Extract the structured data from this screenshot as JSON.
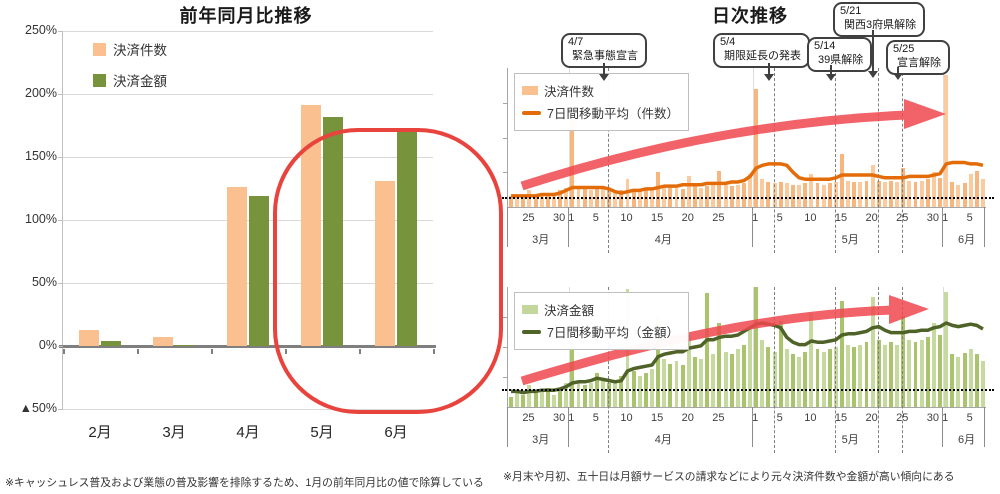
{
  "right_panel": {
    "title": "日次推移",
    "footnote": "※月末や月初、五十日は月額サービスの請求などにより元々決済件数や金額が高い傾向にある",
    "events": [
      {
        "date": "4/7",
        "label": "緊急事態宣言",
        "day": 16
      },
      {
        "date": "5/4",
        "label": "期限延長の発表",
        "day": 43
      },
      {
        "date": "5/14",
        "label": "39県解除",
        "day": 53
      },
      {
        "date": "5/21",
        "label": "関西3府県解除",
        "day": 60
      },
      {
        "date": "5/25",
        "label": "宣言解除",
        "day": 64
      }
    ]
  },
  "chart_data": [
    {
      "id": "yoy",
      "type": "bar",
      "title": "前年同月比推移",
      "categories": [
        "2月",
        "3月",
        "4月",
        "5月",
        "6月"
      ],
      "series": [
        {
          "name": "決済件数",
          "color": "#FAC090",
          "values": [
            13,
            7,
            126,
            191,
            131
          ]
        },
        {
          "name": "決済金額",
          "color": "#77933C",
          "values": [
            4,
            1,
            119,
            182,
            172
          ]
        }
      ],
      "y_ticks": [
        "250%",
        "200%",
        "150%",
        "100%",
        "50%",
        "0%",
        "▲50%"
      ],
      "ylim": [
        -50,
        250
      ],
      "grid": true,
      "highlight": {
        "months": [
          "4月",
          "5月",
          "6月"
        ],
        "color": "#E8433C"
      },
      "footnote": "※キャッシュレス普及および業態の普及影響を排除するため、1月の前年同月比の値で除算している"
    },
    {
      "id": "daily-count",
      "type": "bar+line",
      "legend": [
        {
          "label": "決済件数",
          "color": "#FAC090",
          "kind": "bar"
        },
        {
          "label": "7日間移動平均（件数）",
          "color": "#E36C09",
          "kind": "line"
        }
      ],
      "date_range": "3/22 - 6/7",
      "baseline_pct": 7,
      "month_start_days": [
        10,
        40,
        71
      ],
      "x_ticks": [
        {
          "label": "25",
          "day": 3
        },
        {
          "label": "30",
          "day": 8
        },
        {
          "label": "1",
          "day": 10
        },
        {
          "label": "5",
          "day": 14
        },
        {
          "label": "10",
          "day": 19
        },
        {
          "label": "15",
          "day": 24
        },
        {
          "label": "20",
          "day": 29
        },
        {
          "label": "25",
          "day": 34
        },
        {
          "label": "1",
          "day": 40
        },
        {
          "label": "5",
          "day": 44
        },
        {
          "label": "10",
          "day": 49
        },
        {
          "label": "15",
          "day": 54
        },
        {
          "label": "20",
          "day": 59
        },
        {
          "label": "25",
          "day": 64
        },
        {
          "label": "30",
          "day": 69
        },
        {
          "label": "1",
          "day": 71
        },
        {
          "label": "5",
          "day": 75
        }
      ],
      "months": [
        {
          "label": "3月",
          "center_day": 5
        },
        {
          "label": "4月",
          "center_day": 25
        },
        {
          "label": "5月",
          "center_day": 55.5
        },
        {
          "label": "6月",
          "center_day": 74.5
        }
      ],
      "bars": [
        8,
        9,
        8,
        12,
        9,
        9,
        10,
        8,
        12,
        14,
        67,
        15,
        13,
        12,
        14,
        13,
        12,
        11,
        12,
        20,
        13,
        12,
        13,
        14,
        25,
        15,
        14,
        14,
        13,
        22,
        15,
        14,
        15,
        16,
        26,
        16,
        15,
        16,
        17,
        24,
        85,
        20,
        18,
        17,
        18,
        17,
        16,
        16,
        17,
        24,
        17,
        16,
        17,
        18,
        38,
        19,
        18,
        18,
        19,
        30,
        19,
        18,
        19,
        18,
        28,
        19,
        18,
        19,
        20,
        25,
        21,
        95,
        18,
        16,
        17,
        24,
        26,
        20
      ],
      "ma": [
        8,
        8,
        8,
        8,
        8,
        9,
        9,
        9,
        10,
        12,
        14,
        14,
        14,
        14,
        14,
        14,
        13,
        11,
        10,
        11,
        12,
        12,
        13,
        13,
        14,
        15,
        15,
        15,
        16,
        16,
        16,
        16,
        17,
        17,
        17,
        17,
        18,
        18,
        19,
        22,
        28,
        30,
        31,
        31,
        31,
        30,
        25,
        21,
        20,
        20,
        20,
        20,
        20,
        21,
        23,
        23,
        23,
        23,
        23,
        23,
        22,
        21,
        21,
        21,
        21,
        22,
        22,
        22,
        22,
        23,
        24,
        31,
        32,
        32,
        32,
        31,
        31,
        30
      ]
    },
    {
      "id": "daily-amount",
      "type": "bar+line",
      "legend": [
        {
          "label": "決済金額",
          "color": "#C3D69B",
          "kind": "bar"
        },
        {
          "label": "7日間移動平均（金額）",
          "color": "#4F6228",
          "kind": "line"
        }
      ],
      "date_range": "3/22 - 6/7",
      "baseline_pct": 15,
      "month_start_days": [
        10,
        40,
        71
      ],
      "x_ticks": [
        {
          "label": "25",
          "day": 3
        },
        {
          "label": "30",
          "day": 8
        },
        {
          "label": "1",
          "day": 10
        },
        {
          "label": "5",
          "day": 14
        },
        {
          "label": "10",
          "day": 19
        },
        {
          "label": "15",
          "day": 24
        },
        {
          "label": "20",
          "day": 29
        },
        {
          "label": "25",
          "day": 34
        },
        {
          "label": "1",
          "day": 40
        },
        {
          "label": "5",
          "day": 44
        },
        {
          "label": "10",
          "day": 49
        },
        {
          "label": "15",
          "day": 54
        },
        {
          "label": "20",
          "day": 59
        },
        {
          "label": "25",
          "day": 64
        },
        {
          "label": "30",
          "day": 69
        },
        {
          "label": "1",
          "day": 71
        },
        {
          "label": "5",
          "day": 75
        }
      ],
      "months": [
        {
          "label": "3月",
          "center_day": 5
        },
        {
          "label": "4月",
          "center_day": 25
        },
        {
          "label": "5月",
          "center_day": 55.5
        },
        {
          "label": "6月",
          "center_day": 74.5
        }
      ],
      "bars": [
        8,
        12,
        10,
        18,
        12,
        14,
        16,
        10,
        16,
        20,
        55,
        22,
        18,
        20,
        28,
        22,
        20,
        22,
        26,
        98,
        30,
        26,
        28,
        32,
        75,
        40,
        36,
        38,
        35,
        60,
        42,
        40,
        95,
        44,
        70,
        46,
        44,
        48,
        52,
        65,
        100,
        56,
        50,
        46,
        72,
        48,
        44,
        42,
        46,
        78,
        48,
        46,
        48,
        50,
        88,
        52,
        50,
        52,
        54,
        92,
        56,
        52,
        54,
        52,
        76,
        56,
        54,
        56,
        58,
        70,
        60,
        96,
        44,
        42,
        45,
        48,
        44,
        38
      ],
      "ma": [
        13,
        13,
        12,
        13,
        13,
        14,
        14,
        14,
        15,
        17,
        20,
        21,
        21,
        22,
        24,
        23,
        22,
        21,
        22,
        30,
        32,
        33,
        34,
        35,
        42,
        44,
        45,
        46,
        46,
        49,
        50,
        51,
        56,
        56,
        58,
        59,
        59,
        60,
        63,
        66,
        69,
        70,
        69,
        68,
        66,
        58,
        54,
        52,
        52,
        55,
        54,
        54,
        55,
        56,
        60,
        61,
        61,
        62,
        63,
        66,
        67,
        64,
        62,
        62,
        62,
        63,
        63,
        64,
        64,
        66,
        67,
        70,
        68,
        67,
        68,
        69,
        68,
        65
      ]
    }
  ]
}
